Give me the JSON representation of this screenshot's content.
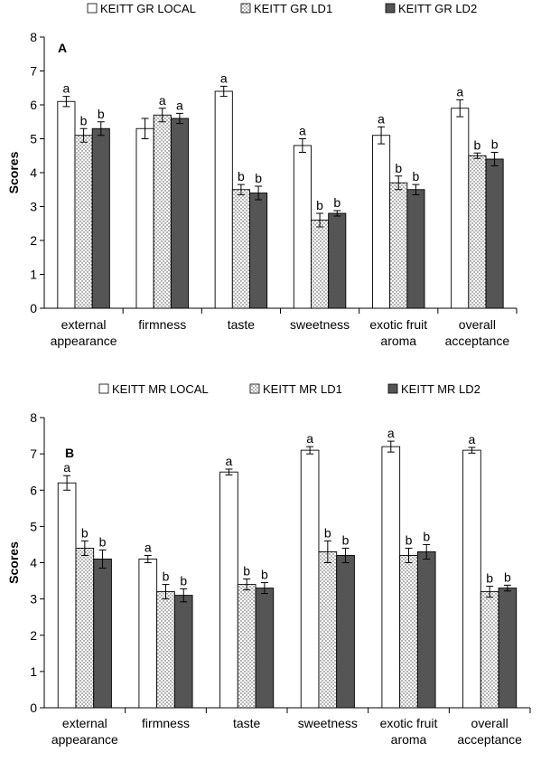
{
  "chart_data": [
    {
      "type": "bar",
      "panel_label": "A",
      "ylabel": "Scores",
      "ylim": [
        0,
        8
      ],
      "yticks": [
        "0",
        "1",
        "2",
        "3",
        "4",
        "5",
        "6",
        "7",
        "8"
      ],
      "grid": false,
      "legend_position": "top",
      "categories": [
        [
          "external",
          "appearance"
        ],
        [
          "firmness"
        ],
        [
          "taste"
        ],
        [
          "sweetness"
        ],
        [
          "exotic fruit",
          "aroma"
        ],
        [
          "overall",
          "acceptance"
        ]
      ],
      "series": [
        {
          "name": "KEITT GR LOCAL",
          "pattern": "white",
          "values": [
            6.1,
            5.3,
            6.4,
            4.8,
            5.1,
            5.9
          ],
          "errors": [
            0.15,
            0.3,
            0.15,
            0.2,
            0.25,
            0.25
          ],
          "labels": [
            "a",
            "",
            "a",
            "a",
            "a",
            "a"
          ]
        },
        {
          "name": "KEITT GR LD1",
          "pattern": "dotted",
          "values": [
            5.1,
            5.7,
            3.5,
            2.6,
            3.7,
            4.5
          ],
          "errors": [
            0.2,
            0.2,
            0.15,
            0.2,
            0.2,
            0.08
          ],
          "labels": [
            "b",
            "a",
            "b",
            "b",
            "b",
            "b"
          ]
        },
        {
          "name": "KEITT GR LD2",
          "pattern": "dark",
          "values": [
            5.3,
            5.6,
            3.4,
            2.8,
            3.5,
            4.4
          ],
          "errors": [
            0.2,
            0.15,
            0.2,
            0.08,
            0.15,
            0.2
          ],
          "labels": [
            "b",
            "a",
            "b",
            "b",
            "b",
            "b"
          ]
        }
      ]
    },
    {
      "type": "bar",
      "panel_label": "B",
      "ylabel": "Scores",
      "ylim": [
        0,
        8
      ],
      "yticks": [
        "0",
        "1",
        "2",
        "3",
        "4",
        "5",
        "6",
        "7",
        "8"
      ],
      "grid": false,
      "legend_position": "top",
      "categories": [
        [
          "external",
          "appearance"
        ],
        [
          "firmness"
        ],
        [
          "taste"
        ],
        [
          "sweetness"
        ],
        [
          "exotic fruit",
          "aroma"
        ],
        [
          "overall",
          "acceptance"
        ]
      ],
      "series": [
        {
          "name": "KEITT MR LOCAL",
          "pattern": "white",
          "values": [
            6.2,
            4.1,
            6.5,
            7.1,
            7.2,
            7.1
          ],
          "errors": [
            0.2,
            0.1,
            0.08,
            0.1,
            0.15,
            0.08
          ],
          "labels": [
            "a",
            "a",
            "a",
            "a",
            "a",
            "a"
          ]
        },
        {
          "name": "KEITT MR LD1",
          "pattern": "dotted",
          "values": [
            4.4,
            3.2,
            3.4,
            4.3,
            4.2,
            3.2
          ],
          "errors": [
            0.2,
            0.2,
            0.15,
            0.3,
            0.2,
            0.15
          ],
          "labels": [
            "b",
            "b",
            "b",
            "b",
            "b",
            "b"
          ]
        },
        {
          "name": "KEITT MR LD2",
          "pattern": "dark",
          "values": [
            4.1,
            3.1,
            3.3,
            4.2,
            4.3,
            3.3
          ],
          "errors": [
            0.25,
            0.18,
            0.15,
            0.2,
            0.2,
            0.08
          ],
          "labels": [
            "b",
            "b",
            "b",
            "b",
            "b",
            "b"
          ]
        }
      ]
    }
  ]
}
